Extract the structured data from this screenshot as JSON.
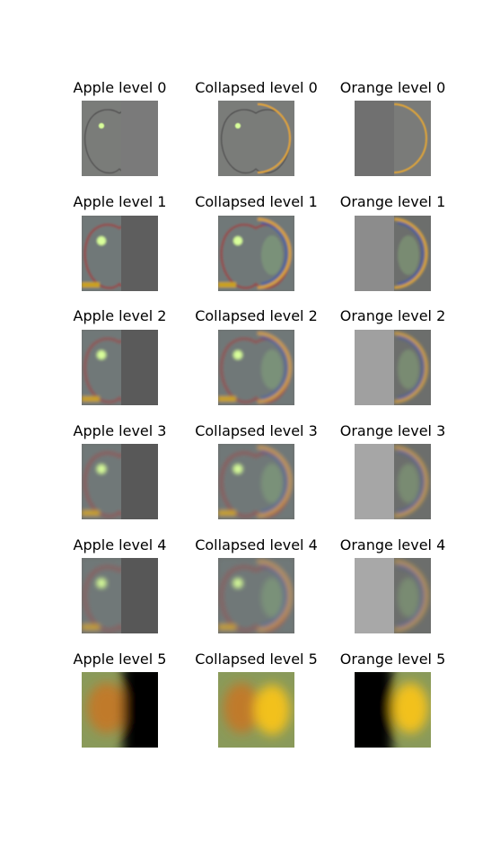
{
  "figure": {
    "rows": [
      {
        "level": 0,
        "panels": [
          {
            "title": "Apple level 0",
            "kind": "apple",
            "render": "detail"
          },
          {
            "title": "Collapsed level 0",
            "kind": "collapsed",
            "render": "detail"
          },
          {
            "title": "Orange level 0",
            "kind": "orange",
            "render": "detail"
          }
        ]
      },
      {
        "level": 1,
        "panels": [
          {
            "title": "Apple level 1",
            "kind": "apple",
            "render": "laplacian"
          },
          {
            "title": "Collapsed level 1",
            "kind": "collapsed",
            "render": "laplacian"
          },
          {
            "title": "Orange level 1",
            "kind": "orange",
            "render": "laplacian"
          }
        ]
      },
      {
        "level": 2,
        "panels": [
          {
            "title": "Apple level 2",
            "kind": "apple",
            "render": "laplacian"
          },
          {
            "title": "Collapsed level 2",
            "kind": "collapsed",
            "render": "laplacian"
          },
          {
            "title": "Orange level 2",
            "kind": "orange",
            "render": "laplacian"
          }
        ]
      },
      {
        "level": 3,
        "panels": [
          {
            "title": "Apple level 3",
            "kind": "apple",
            "render": "laplacian"
          },
          {
            "title": "Collapsed level 3",
            "kind": "collapsed",
            "render": "laplacian"
          },
          {
            "title": "Orange level 3",
            "kind": "orange",
            "render": "laplacian"
          }
        ]
      },
      {
        "level": 4,
        "panels": [
          {
            "title": "Apple level 4",
            "kind": "apple",
            "render": "laplacian"
          },
          {
            "title": "Collapsed level 4",
            "kind": "collapsed",
            "render": "laplacian"
          },
          {
            "title": "Orange level 4",
            "kind": "orange",
            "render": "laplacian"
          }
        ]
      },
      {
        "level": 5,
        "panels": [
          {
            "title": "Apple level 5",
            "kind": "apple",
            "render": "gaussian"
          },
          {
            "title": "Collapsed level 5",
            "kind": "collapsed",
            "render": "gaussian"
          },
          {
            "title": "Orange level 5",
            "kind": "orange",
            "render": "gaussian"
          }
        ]
      }
    ]
  },
  "colors": {
    "page_background": "#ffffff",
    "title_text": "#000000",
    "neutral_gray": "#7a7b79",
    "apple_tint": "#9b3d3c",
    "orange_tint": "#d9a23c",
    "orange_edge_blue": "#3a56b8",
    "highlight_green": "#d9ff9a",
    "gaussian_apple": "#c07a2a",
    "gaussian_orange": "#f2c11a",
    "gaussian_background": "#8a9a5a"
  }
}
